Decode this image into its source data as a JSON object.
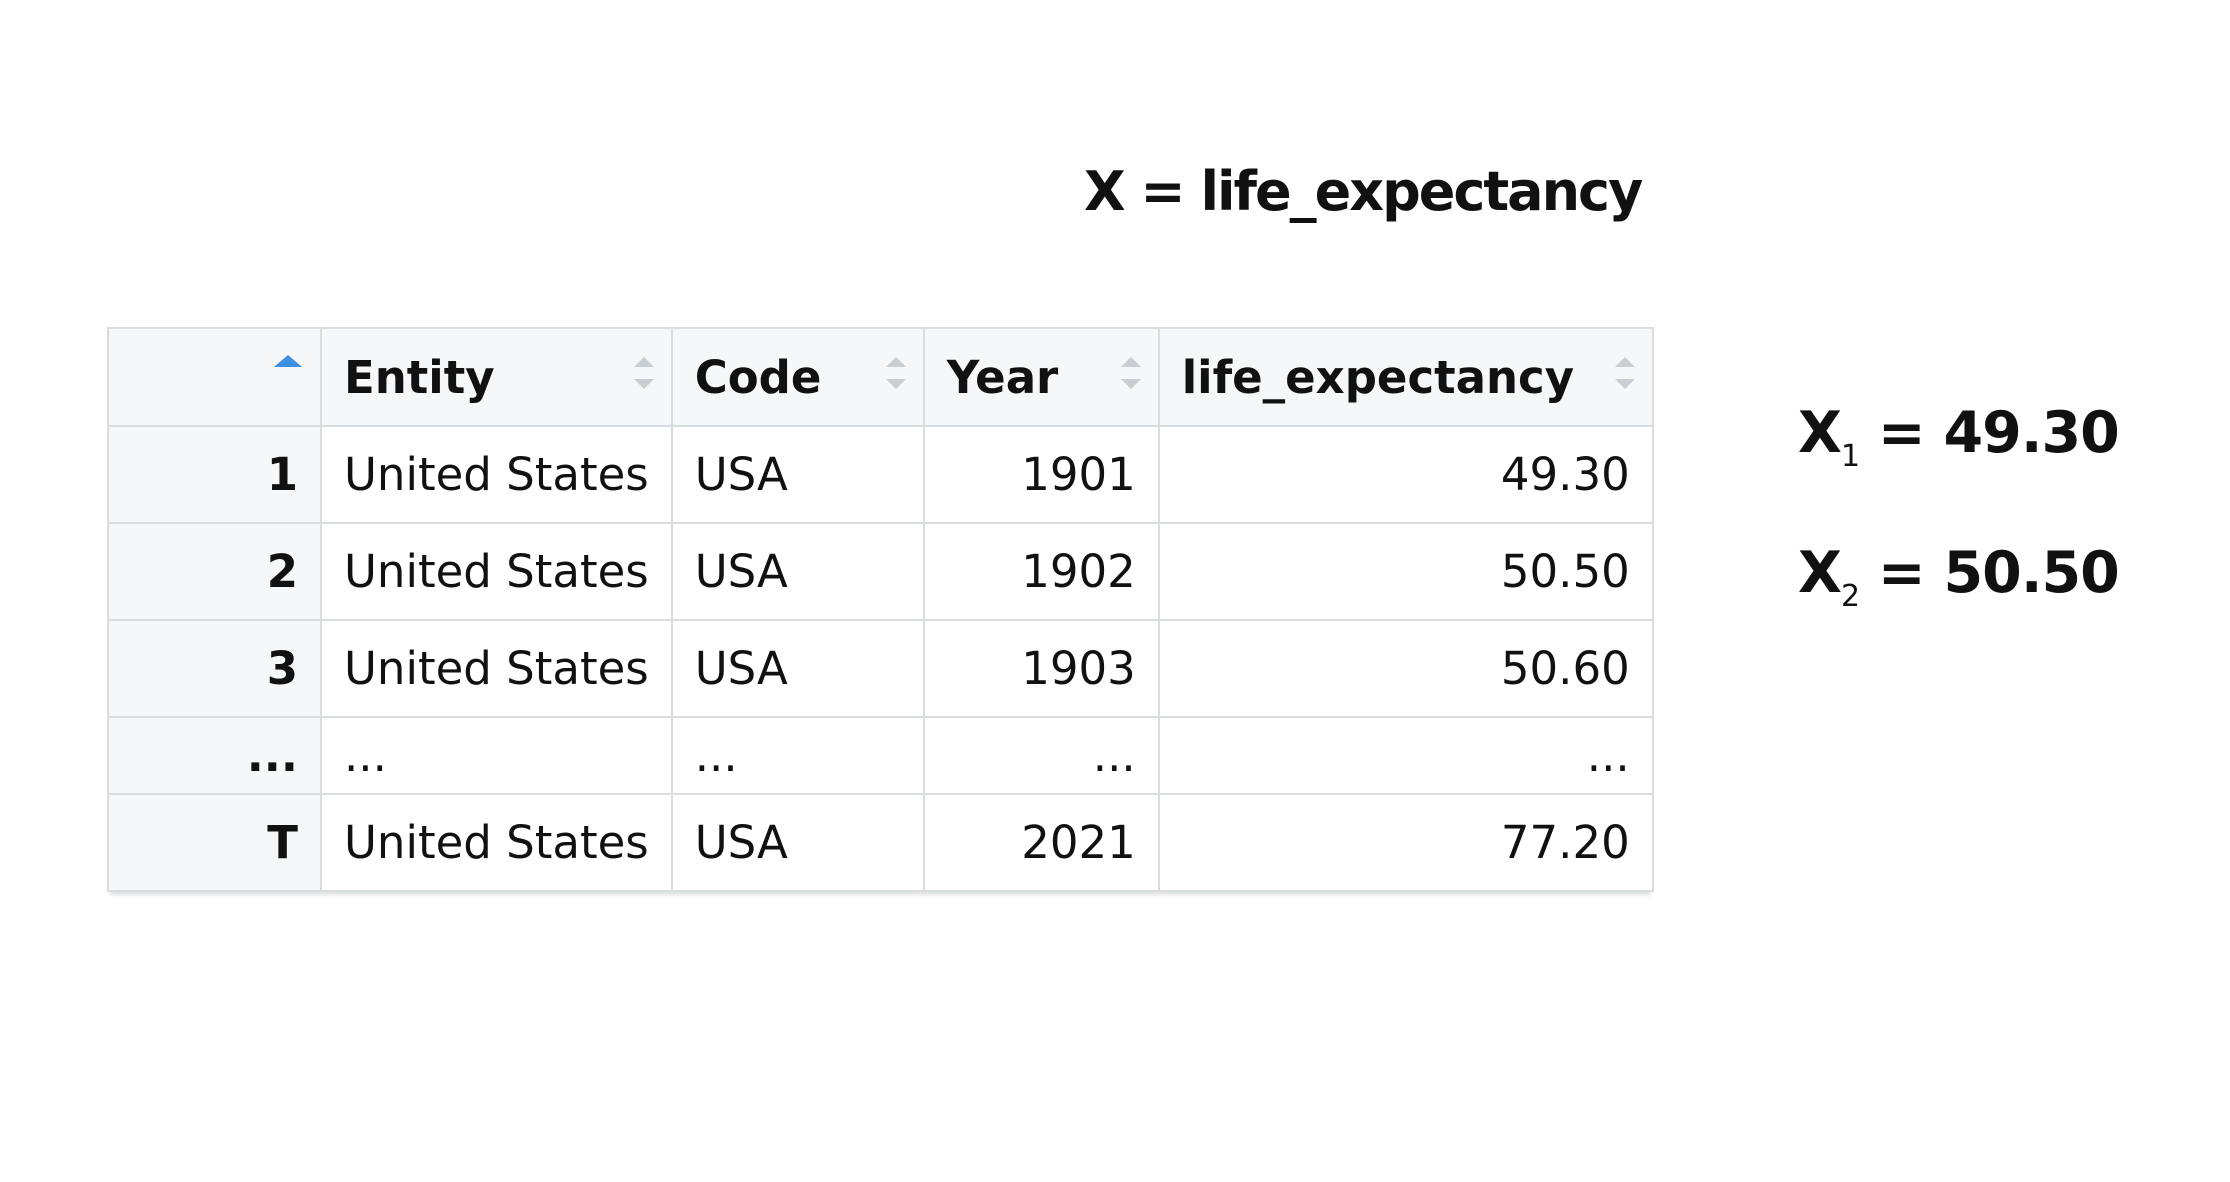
{
  "title": "X = life_expectancy",
  "table": {
    "header": [
      "Entity",
      "Code",
      "Year",
      "life_expectancy"
    ],
    "rows": [
      [
        "1",
        "United States",
        "USA",
        "1901",
        "49.30"
      ],
      [
        "2",
        "United States",
        "USA",
        "1902",
        "50.50"
      ],
      [
        "3",
        "United States",
        "USA",
        "1903",
        "50.60"
      ],
      [
        "...",
        "...",
        "...",
        "...",
        "..."
      ],
      [
        "T",
        "United States",
        "USA",
        "2021",
        "77.20"
      ]
    ]
  },
  "equations": [
    {
      "base": "X",
      "sub": "1",
      "rest": "= 49.30"
    },
    {
      "base": "X",
      "sub": "2",
      "rest": "= 50.50"
    }
  ]
}
